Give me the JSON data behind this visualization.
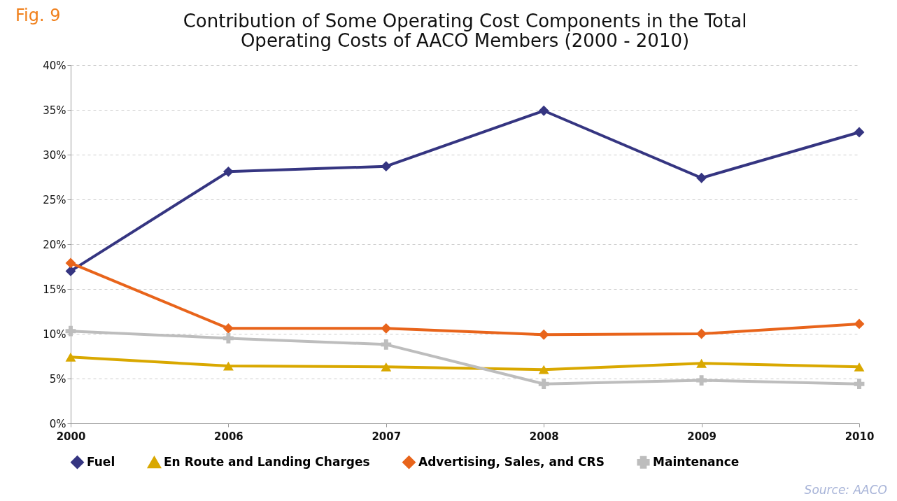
{
  "chart_data": {
    "type": "line",
    "title": "Contribution of Some Operating Cost Components in the Total Operating Costs of AACO Members (2000 - 2010)",
    "categories": [
      "2000",
      "2006",
      "2007",
      "2008",
      "2009",
      "2010"
    ],
    "series": [
      {
        "name": "Fuel",
        "color": "#353581",
        "marker": "diamond",
        "values": [
          17.0,
          28.1,
          28.7,
          34.9,
          27.4,
          32.5
        ]
      },
      {
        "name": "En Route and Landing Charges",
        "color": "#d9a800",
        "marker": "triangle",
        "values": [
          7.4,
          6.4,
          6.3,
          6.0,
          6.7,
          6.3
        ]
      },
      {
        "name": "Advertising, Sales, and CRS",
        "color": "#e8641b",
        "marker": "diamond",
        "values": [
          17.9,
          10.6,
          10.6,
          9.9,
          10.0,
          11.1
        ]
      },
      {
        "name": "Maintenance",
        "color": "#bdbdbd",
        "marker": "cross",
        "values": [
          10.3,
          9.5,
          8.8,
          4.4,
          4.8,
          4.4
        ]
      }
    ],
    "ylim": [
      0,
      40
    ],
    "yticks": [
      {
        "value": 0,
        "label": "0%"
      },
      {
        "value": 5,
        "label": "5%"
      },
      {
        "value": 10,
        "label": "10%"
      },
      {
        "value": 15,
        "label": "15%"
      },
      {
        "value": 20,
        "label": "20%"
      },
      {
        "value": 25,
        "label": "25%"
      },
      {
        "value": 30,
        "label": "30%"
      },
      {
        "value": 35,
        "label": "35%"
      },
      {
        "value": 40,
        "label": "40%"
      }
    ],
    "grid": "y",
    "legend": "bottom",
    "line_style": "solid",
    "annotations": [
      "Fig. 9",
      "Source: AACO"
    ]
  }
}
